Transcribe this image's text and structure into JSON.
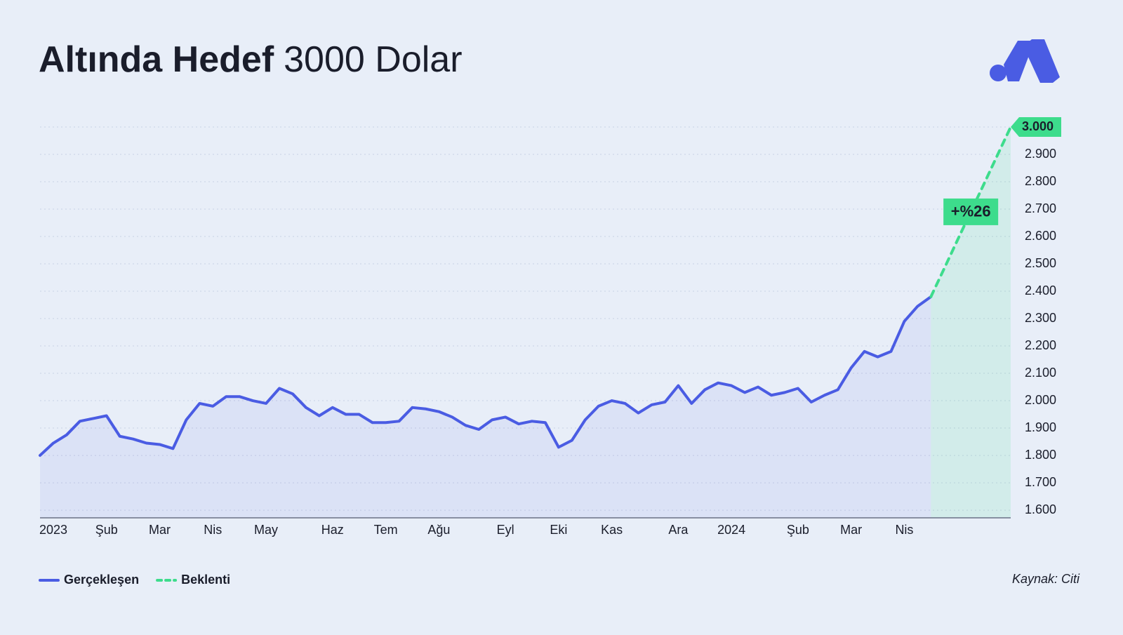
{
  "chart_data": {
    "type": "line",
    "title": {
      "bold": "Altında Hedef",
      "regular": "3000 Dolar"
    },
    "annotation": "+%26",
    "source": "Kaynak: Citi",
    "categories": [
      "2023",
      null,
      null,
      null,
      null,
      "Şub",
      null,
      null,
      null,
      "Mar",
      null,
      null,
      null,
      "Nis",
      null,
      null,
      null,
      "May",
      null,
      null,
      null,
      null,
      "Haz",
      null,
      null,
      null,
      "Tem",
      null,
      null,
      null,
      "Ağu",
      null,
      null,
      null,
      null,
      "Eyl",
      null,
      null,
      null,
      "Eki",
      null,
      null,
      null,
      "Kas",
      null,
      null,
      null,
      null,
      "Ara",
      null,
      null,
      null,
      "2024",
      null,
      null,
      null,
      null,
      "Şub",
      null,
      null,
      null,
      "Mar",
      null,
      null,
      null,
      "Nis",
      null,
      null,
      null,
      null,
      null,
      null,
      null,
      null
    ],
    "series": [
      {
        "name": "Gerçekleşen",
        "color": "#4a5ce3",
        "style": "solid",
        "values": [
          1800,
          1845,
          1875,
          1925,
          1935,
          1945,
          1870,
          1860,
          1845,
          1840,
          1825,
          1930,
          1990,
          1980,
          2015,
          2015,
          2000,
          1990,
          2045,
          2025,
          1975,
          1945,
          1975,
          1950,
          1950,
          1920,
          1920,
          1925,
          1975,
          1970,
          1960,
          1940,
          1910,
          1895,
          1930,
          1940,
          1915,
          1925,
          1920,
          1830,
          1855,
          1930,
          1980,
          2000,
          1990,
          1955,
          1985,
          1995,
          2055,
          1990,
          2040,
          2065,
          2055,
          2030,
          2050,
          2020,
          2030,
          2045,
          1995,
          2020,
          2040,
          2120,
          2180,
          2160,
          2180,
          2290,
          2345,
          2380,
          null,
          null,
          null,
          null,
          null,
          null
        ]
      },
      {
        "name": "Beklenti",
        "color": "#3ddc8c",
        "style": "dashed",
        "values": [
          null,
          null,
          null,
          null,
          null,
          null,
          null,
          null,
          null,
          null,
          null,
          null,
          null,
          null,
          null,
          null,
          null,
          null,
          null,
          null,
          null,
          null,
          null,
          null,
          null,
          null,
          null,
          null,
          null,
          null,
          null,
          null,
          null,
          null,
          null,
          null,
          null,
          null,
          null,
          null,
          null,
          null,
          null,
          null,
          null,
          null,
          null,
          null,
          null,
          null,
          null,
          null,
          null,
          null,
          null,
          null,
          null,
          null,
          null,
          null,
          null,
          null,
          null,
          null,
          null,
          null,
          null,
          2380,
          2483,
          2587,
          2690,
          2793,
          2897,
          3000
        ]
      }
    ],
    "ylim": [
      1572,
      3000
    ],
    "yticks": [
      {
        "value": 1600,
        "label": "1.600"
      },
      {
        "value": 1700,
        "label": "1.700"
      },
      {
        "value": 1800,
        "label": "1.800"
      },
      {
        "value": 1900,
        "label": "1.900"
      },
      {
        "value": 2000,
        "label": "2.000"
      },
      {
        "value": 2100,
        "label": "2.100"
      },
      {
        "value": 2200,
        "label": "2.200"
      },
      {
        "value": 2300,
        "label": "2.300"
      },
      {
        "value": 2400,
        "label": "2.400"
      },
      {
        "value": 2500,
        "label": "2.500"
      },
      {
        "value": 2600,
        "label": "2.600"
      },
      {
        "value": 2700,
        "label": "2.700"
      },
      {
        "value": 2800,
        "label": "2.800"
      },
      {
        "value": 2900,
        "label": "2.900"
      },
      {
        "value": 3000,
        "label": "3.000"
      }
    ],
    "grid": true
  }
}
